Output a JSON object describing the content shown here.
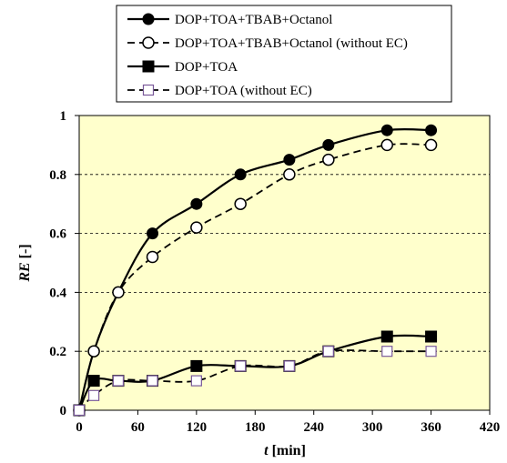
{
  "chart_data": {
    "type": "line",
    "xlabel_italic": "t",
    "xlabel_rest": " [min]",
    "ylabel_italic": "RE",
    "ylabel_rest": " [-]",
    "xlim": [
      0,
      420
    ],
    "ylim": [
      0,
      1
    ],
    "xticks": [
      0,
      60,
      120,
      180,
      240,
      300,
      360,
      420
    ],
    "yticks": [
      0,
      0.2,
      0.4,
      0.6,
      0.8,
      1
    ],
    "ytick_labels": [
      "0",
      "0.2",
      "0.4",
      "0.6",
      "0.8",
      "1"
    ],
    "plot_background": "#ffffcc",
    "grid": "horizontal-dashed",
    "legend_position": "top, above plot",
    "series": [
      {
        "name": "DOP+TOA+TBAB+Octanol",
        "marker": "filled-circle",
        "line": "solid",
        "x": [
          0,
          15,
          40,
          75,
          120,
          165,
          215,
          255,
          315,
          360
        ],
        "y": [
          0,
          0.2,
          0.4,
          0.6,
          0.7,
          0.8,
          0.85,
          0.9,
          0.95,
          0.95
        ]
      },
      {
        "name": "DOP+TOA+TBAB+Octanol (without EC)",
        "marker": "open-circle",
        "line": "dashed",
        "x": [
          0,
          15,
          40,
          75,
          120,
          165,
          215,
          255,
          315,
          360
        ],
        "y": [
          0,
          0.2,
          0.4,
          0.52,
          0.62,
          0.7,
          0.8,
          0.85,
          0.9,
          0.9
        ]
      },
      {
        "name": "DOP+TOA",
        "marker": "filled-square",
        "line": "solid",
        "x": [
          0,
          15,
          40,
          75,
          120,
          165,
          215,
          255,
          315,
          360
        ],
        "y": [
          0,
          0.1,
          0.1,
          0.1,
          0.15,
          0.15,
          0.15,
          0.2,
          0.25,
          0.25
        ]
      },
      {
        "name": "DOP+TOA (without EC)",
        "marker": "open-square",
        "line": "dashed",
        "x": [
          0,
          15,
          40,
          75,
          120,
          165,
          215,
          255,
          315,
          360
        ],
        "y": [
          0,
          0.05,
          0.1,
          0.1,
          0.1,
          0.15,
          0.15,
          0.2,
          0.2,
          0.2
        ]
      }
    ]
  }
}
